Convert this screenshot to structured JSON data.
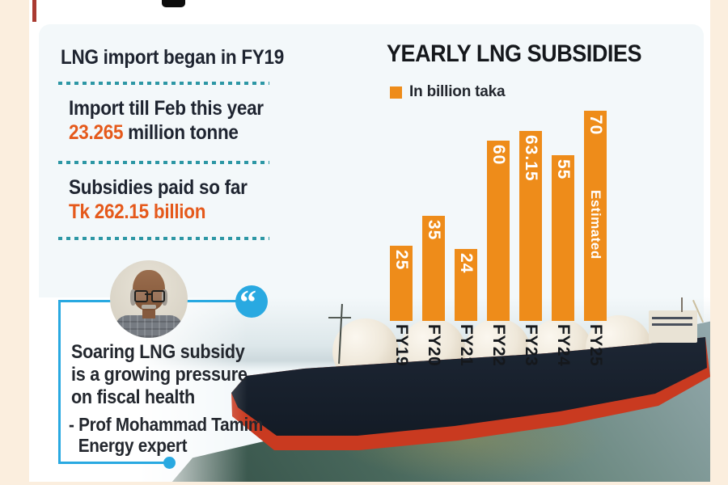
{
  "colors": {
    "accent_orange": "#ee8c1a",
    "stat_orange": "#e5591b",
    "dotted_teal": "#2d97a5",
    "quote_blue": "#29a9e1",
    "ink": "#1e2430",
    "frame_cream": "#fbeede",
    "sea_dark": "#26413a",
    "hull_navy": "#141c27",
    "hull_red": "#c93a20"
  },
  "facts": {
    "fact1": {
      "text": "LNG import began in FY19"
    },
    "fact2": {
      "prefix": "Import till Feb this year",
      "value": "23.265",
      "suffix": " million tonne"
    },
    "fact3": {
      "prefix": "Subsidies paid so far",
      "value": "Tk 262.15 billion"
    }
  },
  "quote": {
    "mark": "“",
    "line1": "Soaring LNG subsidy",
    "line2": "is a growing pressure",
    "line3": "on fiscal health",
    "attribution": "- Prof Mohammad Tamim",
    "attribution_role": "Energy expert"
  },
  "chart": {
    "title": "YEARLY LNG SUBSIDIES",
    "legend_label": "In billion taka"
  },
  "chart_data": {
    "type": "bar",
    "title": "YEARLY LNG SUBSIDIES",
    "unit_label": "In billion taka",
    "categories": [
      "FY19",
      "FY20",
      "FY21",
      "FY22",
      "FY23",
      "FY24",
      "FY25"
    ],
    "values": [
      25,
      35,
      24,
      60,
      63.15,
      55,
      70
    ],
    "value_labels": [
      "25",
      "35",
      "24",
      "60",
      "63.15",
      "55",
      "70"
    ],
    "annotations": [
      {
        "category": "FY25",
        "label": "Estimated"
      }
    ],
    "bar_color": "#ee8c1a",
    "orientation": "vertical",
    "value_label_position": "inside-top-rotated",
    "category_label_position": "below-rotated",
    "ylim": [
      0,
      70
    ],
    "grid": false,
    "legend_position": "top-left"
  }
}
